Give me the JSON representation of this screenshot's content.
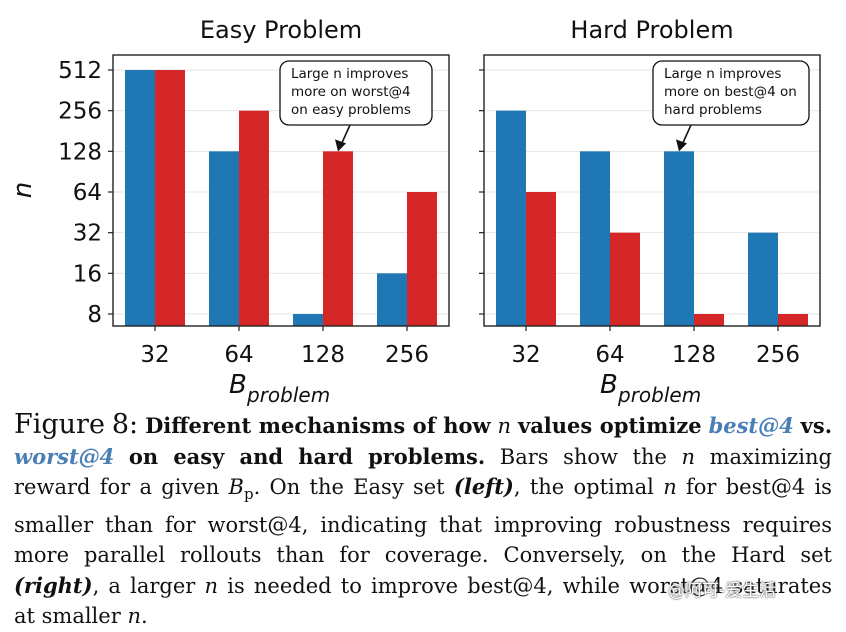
{
  "chart_data": [
    {
      "type": "bar",
      "title": "Easy Problem",
      "xlabel": "B",
      "xlabel_sub": "problem",
      "ylabel": "n",
      "y_scale": "log2",
      "y_ticks": [
        "512",
        "256",
        "128",
        "64",
        "32",
        "16",
        "8"
      ],
      "categories": [
        "32",
        "64",
        "128",
        "256"
      ],
      "series": [
        {
          "color": "#1f77b4",
          "values": [
            512,
            128,
            8,
            16
          ]
        },
        {
          "color": "#d62728",
          "values": [
            512,
            256,
            128,
            64
          ]
        }
      ],
      "annotation": {
        "lines": [
          "Large n improves",
          "more on worst@4",
          "on easy problems"
        ],
        "target_category": "128",
        "target_series": 1
      },
      "grid": "horizontal"
    },
    {
      "type": "bar",
      "title": "Hard Problem",
      "xlabel": "B",
      "xlabel_sub": "problem",
      "categories": [
        "32",
        "64",
        "128",
        "256"
      ],
      "series": [
        {
          "color": "#1f77b4",
          "values": [
            256,
            128,
            128,
            32
          ]
        },
        {
          "color": "#d62728",
          "values": [
            64,
            32,
            8,
            8
          ]
        }
      ],
      "annotation": {
        "lines": [
          "Large n improves",
          "more on best@4 on",
          "hard problems"
        ],
        "target_category": "128",
        "target_series": 0
      },
      "grid": "horizontal"
    }
  ],
  "caption": {
    "figure_label": "Figure",
    "figure_number": "8:",
    "bold_part1": "Different mechanisms of how",
    "n": "n",
    "bold_part2": "values optimize",
    "best": "best@4",
    "vs": "vs.",
    "worst": "worst@4",
    "bold_part3": "on easy and hard problems.",
    "text1": "Bars show the",
    "text2": "maximizing reward for a given",
    "bp_B": "B",
    "bp_sub": "p",
    "text3": ". On the Easy set",
    "left": "(left)",
    "text4": ", the optimal",
    "text5": "for best@4 is smaller than for worst@4, indicating that improving robustness requires more parallel rollouts than for coverage. Conversely, on the Hard set",
    "right": "(right)",
    "text6": ", a larger",
    "text7": "is needed to improve best@4, while worst@4 saturates at smaller",
    "text8": "."
  },
  "watermark": "@阿可-爱生活"
}
